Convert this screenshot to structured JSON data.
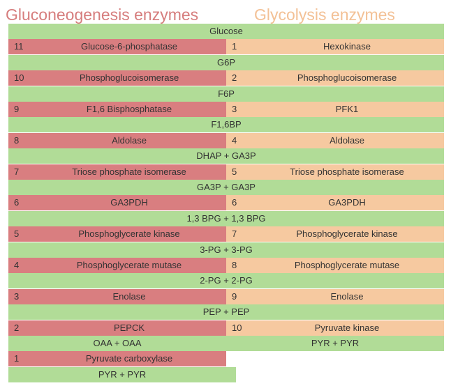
{
  "headers": {
    "gluconeogenesis": "Gluconeogenesis enzymes",
    "glycolysis": "Glycolysis enzymes"
  },
  "colors": {
    "metabolite": "#b1dc97",
    "gluconeogenesis": "#d97e80",
    "glycolysis": "#f6c9a0",
    "gluconeogenesis_header": "#d67d7d",
    "glycolysis_header": "#f3c196"
  },
  "rows": [
    {
      "type": "metabolite",
      "label": "Glucose"
    },
    {
      "type": "enzyme",
      "gluco": {
        "num": "11",
        "label": "Glucose-6-phosphatase"
      },
      "glyco": {
        "num": "1",
        "label": "Hexokinase"
      }
    },
    {
      "type": "metabolite",
      "label": "G6P"
    },
    {
      "type": "enzyme",
      "gluco": {
        "num": "10",
        "label": "Phosphoglucoisomerase"
      },
      "glyco": {
        "num": "2",
        "label": "Phosphoglucoisomerase"
      }
    },
    {
      "type": "metabolite",
      "label": "F6P"
    },
    {
      "type": "enzyme",
      "gluco": {
        "num": "9",
        "label": "F1,6 Bisphosphatase"
      },
      "glyco": {
        "num": "3",
        "label": "PFK1"
      }
    },
    {
      "type": "metabolite",
      "label": "F1,6BP"
    },
    {
      "type": "enzyme",
      "gluco": {
        "num": "8",
        "label": "Aldolase"
      },
      "glyco": {
        "num": "4",
        "label": "Aldolase"
      }
    },
    {
      "type": "metabolite",
      "label": "DHAP + GA3P"
    },
    {
      "type": "enzyme",
      "gluco": {
        "num": "7",
        "label": "Triose phosphate isomerase"
      },
      "glyco": {
        "num": "5",
        "label": "Triose phosphate isomerase"
      }
    },
    {
      "type": "metabolite",
      "label": "GA3P + GA3P"
    },
    {
      "type": "enzyme",
      "gluco": {
        "num": "6",
        "label": "GA3PDH"
      },
      "glyco": {
        "num": "6",
        "label": "GA3PDH"
      }
    },
    {
      "type": "metabolite",
      "label": "1,3 BPG + 1,3 BPG"
    },
    {
      "type": "enzyme",
      "gluco": {
        "num": "5",
        "label": "Phosphoglycerate kinase"
      },
      "glyco": {
        "num": "7",
        "label": "Phosphoglycerate kinase"
      }
    },
    {
      "type": "metabolite",
      "label": "3-PG + 3-PG"
    },
    {
      "type": "enzyme",
      "gluco": {
        "num": "4",
        "label": "Phosphoglycerate mutase"
      },
      "glyco": {
        "num": "8",
        "label": "Phosphoglycerate mutase"
      }
    },
    {
      "type": "metabolite",
      "label": "2-PG + 2-PG"
    },
    {
      "type": "enzyme",
      "gluco": {
        "num": "3",
        "label": "Enolase"
      },
      "glyco": {
        "num": "9",
        "label": "Enolase"
      }
    },
    {
      "type": "metabolite",
      "label": "PEP + PEP"
    },
    {
      "type": "enzyme",
      "gluco": {
        "num": "2",
        "label": "PEPCK"
      },
      "glyco": {
        "num": "10",
        "label": "Pyruvate kinase"
      }
    },
    {
      "type": "split",
      "gluco_label": "OAA + OAA",
      "glyco_label": "PYR + PYR"
    },
    {
      "type": "gluco_only",
      "gluco": {
        "num": "1",
        "label": "Pyruvate carboxylase"
      }
    },
    {
      "type": "gluco_metabolite",
      "label": "PYR + PYR"
    }
  ]
}
